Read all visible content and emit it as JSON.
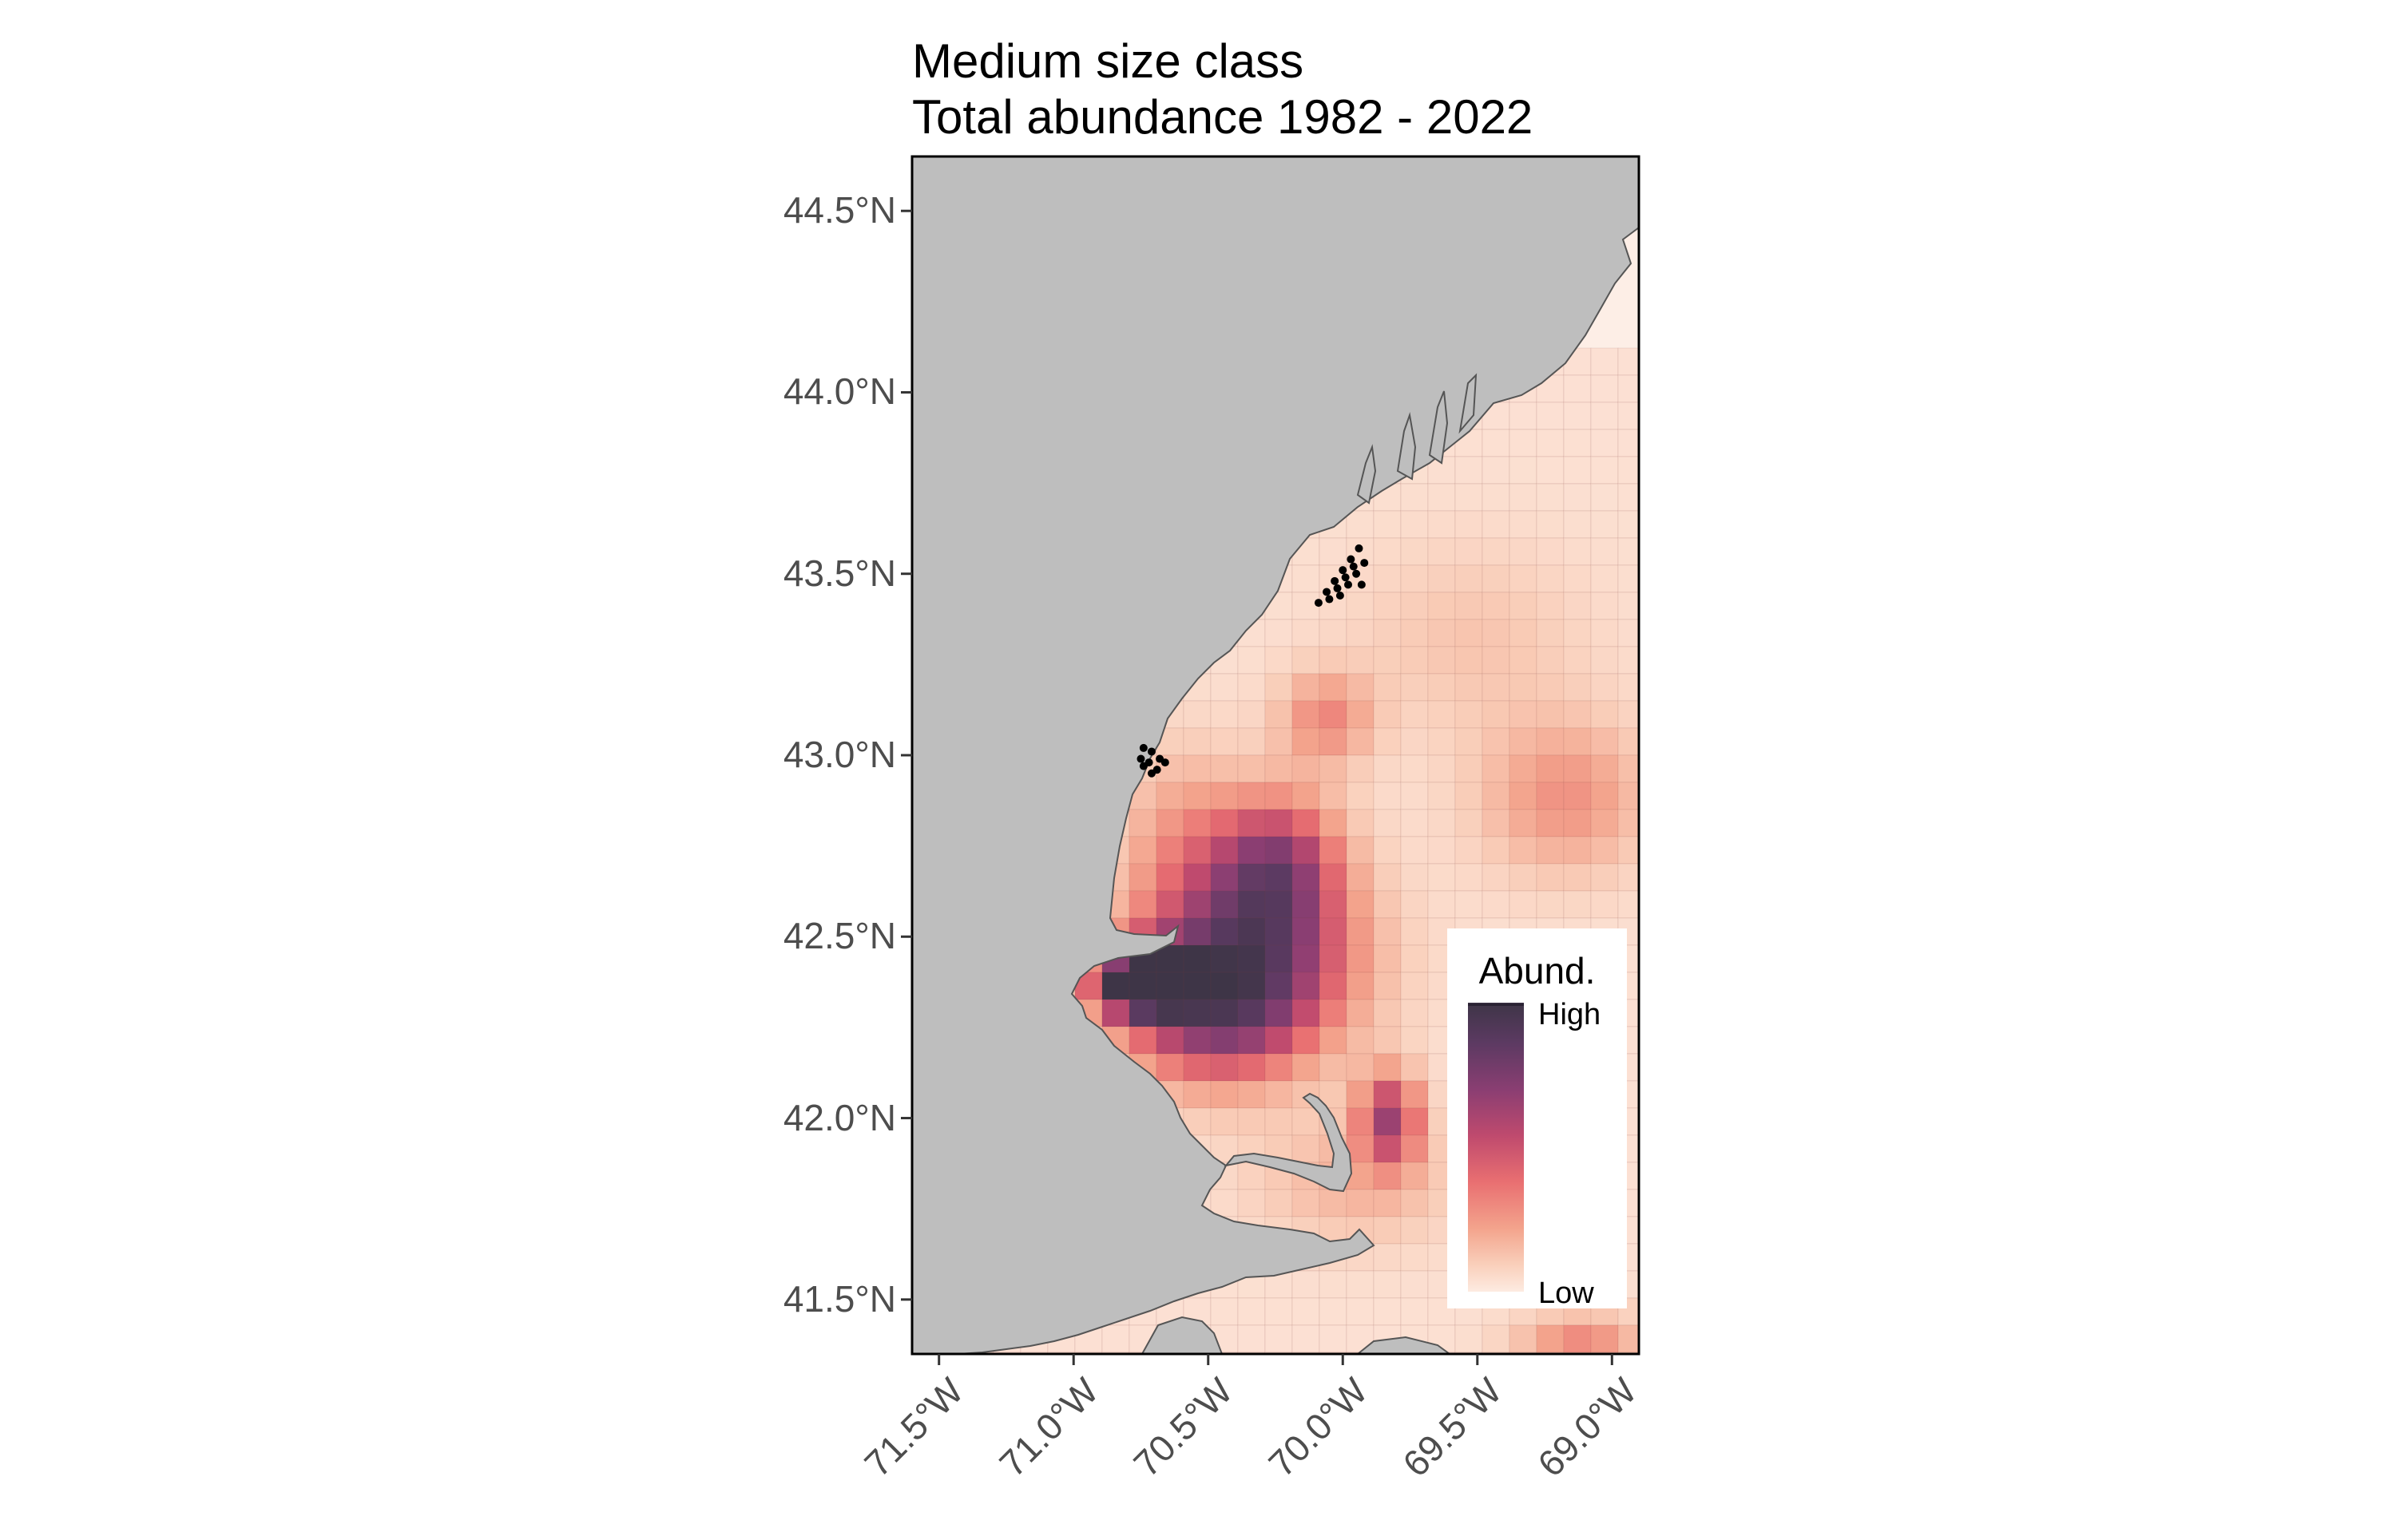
{
  "figure": {
    "title_line1": "Medium size class",
    "title_line2": "Total abundance 1982 - 2022"
  },
  "map": {
    "extent": {
      "lon": [
        -71.6,
        -68.9
      ],
      "lat": [
        41.35,
        44.65
      ]
    },
    "land_color": "#bebebe",
    "water_color": "#fdeee6",
    "coastline_color": "#555555",
    "y_ticks": [
      {
        "lat": 44.5,
        "label": "44.5°N"
      },
      {
        "lat": 44.0,
        "label": "44.0°N"
      },
      {
        "lat": 43.5,
        "label": "43.5°N"
      },
      {
        "lat": 43.0,
        "label": "43.0°N"
      },
      {
        "lat": 42.5,
        "label": "42.5°N"
      },
      {
        "lat": 42.0,
        "label": "42.0°N"
      },
      {
        "lat": 41.5,
        "label": "41.5°N"
      }
    ],
    "x_ticks": [
      {
        "lon": -71.5,
        "label": "71.5°W"
      },
      {
        "lon": -71.0,
        "label": "71.0°W"
      },
      {
        "lon": -70.5,
        "label": "70.5°W"
      },
      {
        "lon": -70.0,
        "label": "70.0°W"
      },
      {
        "lon": -69.5,
        "label": "69.5°W"
      },
      {
        "lon": -69.0,
        "label": "69.0°W"
      }
    ],
    "survey_points": [
      {
        "lon": -70.74,
        "lat": 43.02
      },
      {
        "lon": -70.71,
        "lat": 43.01
      },
      {
        "lon": -70.68,
        "lat": 42.99
      },
      {
        "lon": -70.75,
        "lat": 42.99
      },
      {
        "lon": -70.72,
        "lat": 42.98
      },
      {
        "lon": -70.69,
        "lat": 42.96
      },
      {
        "lon": -70.74,
        "lat": 42.97
      },
      {
        "lon": -70.71,
        "lat": 42.95
      },
      {
        "lon": -70.66,
        "lat": 42.98
      },
      {
        "lon": -70.09,
        "lat": 43.42
      },
      {
        "lon": -70.06,
        "lat": 43.45
      },
      {
        "lon": -70.03,
        "lat": 43.48
      },
      {
        "lon": -70.0,
        "lat": 43.51
      },
      {
        "lon": -69.97,
        "lat": 43.54
      },
      {
        "lon": -69.94,
        "lat": 43.57
      },
      {
        "lon": -70.05,
        "lat": 43.43
      },
      {
        "lon": -70.02,
        "lat": 43.46
      },
      {
        "lon": -69.99,
        "lat": 43.49
      },
      {
        "lon": -69.96,
        "lat": 43.52
      },
      {
        "lon": -70.01,
        "lat": 43.44
      },
      {
        "lon": -69.98,
        "lat": 43.47
      },
      {
        "lon": -69.95,
        "lat": 43.5
      },
      {
        "lon": -69.93,
        "lat": 43.47
      },
      {
        "lon": -69.92,
        "lat": 43.53
      }
    ]
  },
  "legend": {
    "title": "Abund.",
    "high_label": "High",
    "low_label": "Low",
    "color_scale": [
      "#fdebe1",
      "#f9cdb8",
      "#f3a38c",
      "#e96f71",
      "#bf4a6e",
      "#8a3e72",
      "#5c3a62",
      "#3e3547"
    ]
  }
}
